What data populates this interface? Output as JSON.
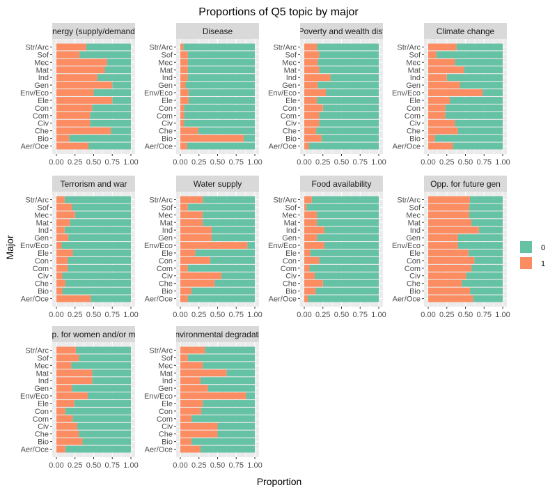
{
  "chart_data": {
    "type": "bar",
    "orientation": "horizontal",
    "stacked": true,
    "title": "Proportions of Q5 topic by major",
    "xlabel": "Proportion",
    "ylabel": "Major",
    "xlim": [
      0,
      1
    ],
    "x_ticks": [
      "0.00",
      "0.25",
      "0.50",
      "0.75",
      "1.00"
    ],
    "categories": [
      "Str/Arc",
      "Sof",
      "Mec",
      "Mat",
      "Ind",
      "Gen",
      "Env/Eco",
      "Ele",
      "Con",
      "Com",
      "Civ",
      "Che",
      "Bio",
      "Aer/Oce"
    ],
    "legend": {
      "position": "right",
      "entries": [
        {
          "label": "0",
          "color": "#66C2A5"
        },
        {
          "label": "1",
          "color": "#FC8D62"
        }
      ]
    },
    "colors": {
      "0": "#66C2A5",
      "1": "#FC8D62",
      "panel": "#EBEBEB",
      "strip": "#D9D9D9"
    },
    "panels": [
      {
        "strip": "nergy (supply/demand",
        "proportion_1": [
          0.4,
          0.31,
          0.68,
          0.65,
          0.55,
          0.75,
          0.5,
          0.75,
          0.48,
          0.45,
          0.45,
          0.73,
          0.17,
          0.43
        ]
      },
      {
        "strip": "Disease",
        "proportion_1": [
          0.04,
          0.1,
          0.1,
          0.1,
          0.1,
          0.07,
          0.11,
          0.11,
          0.05,
          0.05,
          0.05,
          0.24,
          0.85,
          0.09
        ]
      },
      {
        "strip": "Poverty and wealth dist",
        "proportion_1": [
          0.17,
          0.2,
          0.18,
          0.2,
          0.35,
          0.18,
          0.29,
          0.17,
          0.25,
          0.2,
          0.2,
          0.16,
          0.23,
          0.06
        ]
      },
      {
        "strip": "Climate change",
        "proportion_1": [
          0.38,
          0.11,
          0.36,
          0.48,
          0.25,
          0.43,
          0.73,
          0.29,
          0.23,
          0.23,
          0.36,
          0.4,
          0.09,
          0.33
        ]
      },
      {
        "strip": "Terrorism and war",
        "proportion_1": [
          0.11,
          0.21,
          0.25,
          0.18,
          0.11,
          0.16,
          0.07,
          0.22,
          0.15,
          0.15,
          0.08,
          0.12,
          0.08,
          0.46
        ]
      },
      {
        "strip": "Water supply",
        "proportion_1": [
          0.3,
          0.1,
          0.3,
          0.3,
          0.42,
          0.42,
          0.9,
          0.2,
          0.4,
          0.1,
          0.55,
          0.46,
          0.15,
          0.1
        ]
      },
      {
        "strip": "Food availability",
        "proportion_1": [
          0.1,
          0.03,
          0.17,
          0.17,
          0.27,
          0.17,
          0.27,
          0.08,
          0.2,
          0.07,
          0.14,
          0.25,
          0.15,
          0.05
        ]
      },
      {
        "strip": "Opp. for future gen",
        "proportion_1": [
          0.56,
          0.55,
          0.55,
          0.58,
          0.68,
          0.4,
          0.4,
          0.54,
          0.62,
          0.58,
          0.51,
          0.45,
          0.56,
          0.6
        ]
      },
      {
        "strip": "p. for women and/or m",
        "proportion_1": [
          0.26,
          0.3,
          0.2,
          0.48,
          0.48,
          0.21,
          0.42,
          0.24,
          0.12,
          0.22,
          0.28,
          0.3,
          0.35,
          0.12
        ]
      },
      {
        "strip": "nvironmental degradati",
        "proportion_1": [
          0.33,
          0.1,
          0.3,
          0.62,
          0.27,
          0.37,
          0.88,
          0.3,
          0.28,
          0.15,
          0.5,
          0.5,
          0.15,
          0.27
        ]
      }
    ]
  }
}
